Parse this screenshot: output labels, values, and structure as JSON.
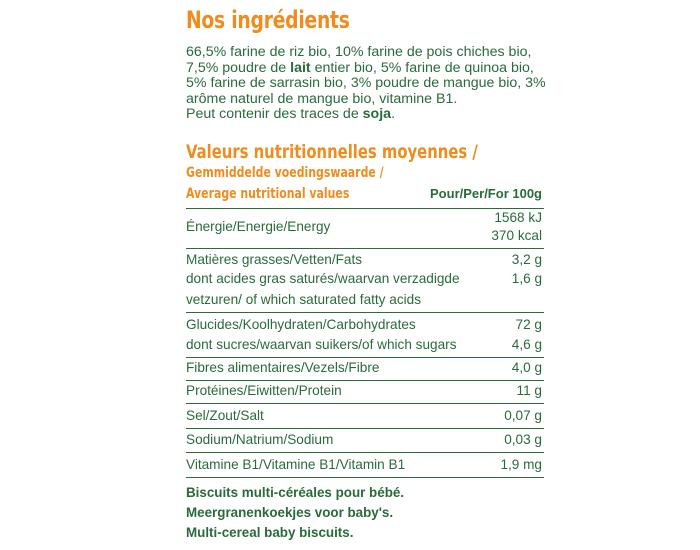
{
  "ingredients_title": "Nos ingrédients",
  "ingredients": {
    "line1": "66,5% farine de riz bio, 10% farine de pois chiches bio,",
    "line2_a": "7,5% poudre de ",
    "line2_bold": "lait",
    "line2_b": " entier bio, 5% farine de quinoa bio,",
    "line3": "5% farine de sarrasin bio, 3% poudre de mangue bio, 3%",
    "line4": "arôme naturel de mangue bio, vitamine B1.",
    "line5_a": "Peut contenir des traces de ",
    "line5_bold": "soja",
    "line5_b": "."
  },
  "nutrition": {
    "heading_fr": "Valeurs nutritionnelles moyennes /",
    "heading_nl": "Gemmiddelde voedingswaarde /",
    "heading_en": "Average nutritional values",
    "per_header": "Pour/Per/For 100g",
    "energy_label": "Énergie/Energie/Energy",
    "energy_kj": "1568 kJ",
    "energy_kcal": "370 kcal",
    "fats_label": "Matières grasses/Vetten/Fats",
    "fats_value": "3,2 g",
    "satfat_label_1": "dont acides gras saturés/waarvan verzadigde",
    "satfat_label_2": "vetzuren/ of which saturated fatty acids",
    "satfat_value": "1,6 g",
    "carbs_label": "Glucides/Koolhydraten/Carbohydrates",
    "carbs_value": "72 g",
    "sugars_label": "dont sucres/waarvan suikers/of which sugars",
    "sugars_value": "4,6 g",
    "fibre_label": "Fibres alimentaires/Vezels/Fibre",
    "fibre_value": "4,0 g",
    "protein_label": "Protéines/Eiwitten/Protein",
    "protein_value": "11 g",
    "salt_label": "Sel/Zout/Salt",
    "salt_value": "0,07 g",
    "sodium_label": "Sodium/Natrium/Sodium",
    "sodium_value": "0,03 g",
    "vitb1_label": "Vitamine B1/Vitamine B1/Vitamin B1",
    "vitb1_value": "1,9 mg"
  },
  "footer": {
    "line_fr": "Biscuits multi-céréales pour bébé.",
    "line_nl": "Meergranenkoekjes voor baby's.",
    "line_en": "Multi-cereal baby biscuits."
  },
  "colors": {
    "accent_orange": "#f08c1e",
    "text_green": "#2a6a3b"
  }
}
